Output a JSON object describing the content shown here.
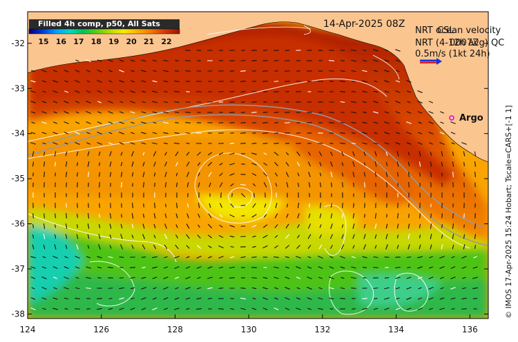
{
  "map": {
    "date_label": "14-Apr-2025 08Z",
    "lon_ticks": [
      "124",
      "126",
      "128",
      "130",
      "132",
      "134",
      "136"
    ],
    "lat_ticks": [
      "-32",
      "-33",
      "-34",
      "-35",
      "-36",
      "-37",
      "-38"
    ],
    "lon_range": [
      124,
      136.5
    ],
    "lat_range": [
      -38.1,
      -31.3
    ],
    "colors": {
      "land": "#fbc590",
      "frame": "#000000"
    }
  },
  "colorbar": {
    "title": "Filled 4h comp, p50, All Sats",
    "ticks": [
      "15",
      "16",
      "17",
      "18",
      "19",
      "20",
      "21",
      "22"
    ],
    "colors": [
      "#05007a",
      "#0038d8",
      "#00a0ff",
      "#00d9c6",
      "#00c455",
      "#5fcf10",
      "#b8dc00",
      "#f7ec00",
      "#ffb000",
      "#f57a00",
      "#db3900",
      "#9b1300"
    ]
  },
  "legend": {
    "line1": "NRT ocean velocity",
    "line2": "NRT (4-12h avg) QC",
    "line3": "0.5m/s (1kt 24h)",
    "overlap1": "CSL",
    "overlap2": "0007Z",
    "arrow_colors": [
      "#1234e0",
      "#e0161b"
    ]
  },
  "argo": {
    "label": "Argo",
    "marker_color": "#e000e0"
  },
  "credit": "© IMOS 17-Apr-2025 15:24 Hobart; Tscale=CARS+[-1 1]"
}
